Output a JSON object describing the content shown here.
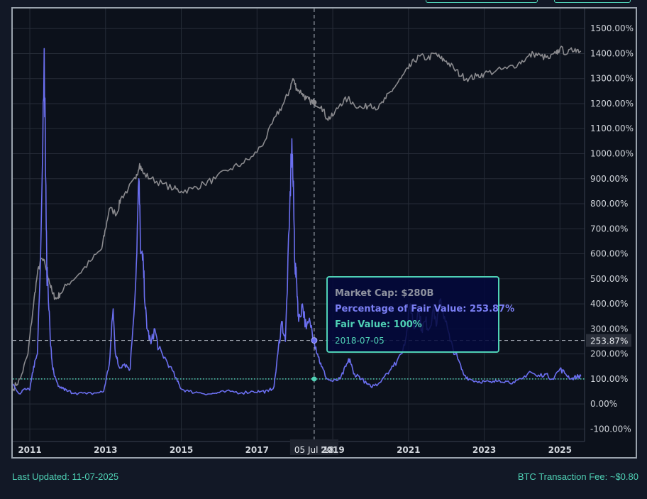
{
  "header": {
    "buttons": [
      {
        "label": ""
      },
      {
        "label": ""
      }
    ]
  },
  "footer": {
    "last_updated": "Last Updated: 11-07-2025",
    "fee": "BTC Transaction Fee: ~$0.80"
  },
  "tooltip": {
    "market_cap": "Market Cap: $280B",
    "percentage": "Percentage of Fair Value: 253.87%",
    "fair_value": "Fair Value: 100%",
    "date": "2018-07-05"
  },
  "crosshair": {
    "x_label": "05 Jul '18",
    "y_label": "253.87%",
    "x": 2018.51,
    "y": 253.87
  },
  "colors": {
    "background": "#0c111b",
    "page": "#121826",
    "grid": "#262c38",
    "percentage_line": "#6b6ff0",
    "market_cap_line": "#8a8a8e",
    "fair_value_line": "#4fd1b5",
    "axis_text": "#d0d4da",
    "frame": "#9aa3ad"
  },
  "chart_data": {
    "type": "line",
    "x_axis": {
      "min": 2010.55,
      "max": 2025.65,
      "ticks": [
        2011,
        2013,
        2015,
        2017,
        2019,
        2021,
        2023,
        2025
      ],
      "tick_labels": [
        "2011",
        "2013",
        "2015",
        "2017",
        "2019",
        "2021",
        "2023",
        "2025"
      ]
    },
    "y_axis": {
      "min": -150,
      "max": 1580,
      "position": "right",
      "ticks": [
        -100,
        0,
        100,
        200,
        300,
        400,
        500,
        600,
        700,
        800,
        900,
        1000,
        1100,
        1200,
        1300,
        1400,
        1500
      ],
      "tick_labels": [
        "-100.00%",
        "0.00%",
        "100.00%",
        "200.00%",
        "300.00%",
        "400.00%",
        "500.00%",
        "600.00%",
        "700.00%",
        "800.00%",
        "900.00%",
        "1000.00%",
        "1100.00%",
        "1200.00%",
        "1300.00%",
        "1400.00%",
        "1500.00%"
      ]
    },
    "grid": true,
    "fair_value": 100,
    "series": [
      {
        "key": "percentage_of_fair_value",
        "x": [
          2010.55,
          2010.75,
          2010.85,
          2011.0,
          2011.1,
          2011.2,
          2011.3,
          2011.38,
          2011.42,
          2011.45,
          2011.48,
          2011.55,
          2011.6,
          2011.65,
          2011.75,
          2011.9,
          2012.0,
          2012.2,
          2012.5,
          2012.8,
          2012.95,
          2013.1,
          2013.2,
          2013.25,
          2013.3,
          2013.35,
          2013.5,
          2013.65,
          2013.8,
          2013.88,
          2013.93,
          2014.0,
          2014.05,
          2014.1,
          2014.2,
          2014.3,
          2014.4,
          2014.5,
          2014.7,
          2014.9,
          2015.0,
          2015.2,
          2015.5,
          2015.8,
          2016.0,
          2016.3,
          2016.6,
          2016.9,
          2017.1,
          2017.3,
          2017.45,
          2017.55,
          2017.65,
          2017.75,
          2017.85,
          2017.92,
          2017.97,
          2018.0,
          2018.05,
          2018.1,
          2018.2,
          2018.3,
          2018.4,
          2018.51,
          2018.6,
          2018.7,
          2018.85,
          2019.0,
          2019.2,
          2019.35,
          2019.45,
          2019.55,
          2019.7,
          2019.9,
          2020.0,
          2020.2,
          2020.4,
          2020.6,
          2020.8,
          2020.95,
          2021.05,
          2021.15,
          2021.25,
          2021.35,
          2021.45,
          2021.55,
          2021.65,
          2021.75,
          2021.85,
          2021.95,
          2022.1,
          2022.3,
          2022.45,
          2022.6,
          2022.8,
          2023.0,
          2023.2,
          2023.4,
          2023.6,
          2023.8,
          2024.0,
          2024.2,
          2024.4,
          2024.6,
          2024.8,
          2025.0,
          2025.15,
          2025.3,
          2025.45,
          2025.55
        ],
        "y": [
          80,
          40,
          60,
          55,
          150,
          200,
          700,
          1420,
          900,
          520,
          480,
          230,
          150,
          110,
          70,
          60,
          50,
          45,
          40,
          45,
          50,
          160,
          380,
          220,
          180,
          150,
          160,
          140,
          500,
          900,
          600,
          550,
          380,
          300,
          240,
          300,
          220,
          200,
          150,
          90,
          60,
          50,
          45,
          40,
          45,
          50,
          45,
          50,
          50,
          50,
          70,
          200,
          330,
          250,
          700,
          1060,
          780,
          560,
          480,
          330,
          400,
          300,
          330,
          254,
          200,
          150,
          100,
          90,
          100,
          150,
          180,
          120,
          110,
          80,
          70,
          80,
          120,
          150,
          200,
          280,
          400,
          300,
          380,
          300,
          330,
          300,
          380,
          320,
          420,
          350,
          250,
          180,
          120,
          100,
          90,
          90,
          85,
          95,
          90,
          85,
          100,
          130,
          110,
          120,
          100,
          140,
          120,
          100,
          110,
          110
        ]
      },
      {
        "key": "market_cap",
        "x": [
          2010.55,
          2010.75,
          2010.95,
          2011.1,
          2011.2,
          2011.3,
          2011.4,
          2011.5,
          2011.6,
          2011.7,
          2011.8,
          2012.0,
          2012.3,
          2012.6,
          2012.9,
          2013.0,
          2013.1,
          2013.3,
          2013.4,
          2013.6,
          2013.8,
          2013.9,
          2014.0,
          2014.2,
          2014.5,
          2014.8,
          2015.0,
          2015.3,
          2015.6,
          2015.9,
          2016.3,
          2016.6,
          2016.9,
          2017.2,
          2017.5,
          2017.7,
          2017.85,
          2017.95,
          2018.05,
          2018.2,
          2018.3,
          2018.4,
          2018.51,
          2018.7,
          2018.85,
          2019.0,
          2019.2,
          2019.4,
          2019.55,
          2019.8,
          2020.0,
          2020.2,
          2020.4,
          2020.6,
          2020.8,
          2021.0,
          2021.15,
          2021.3,
          2021.5,
          2021.7,
          2021.85,
          2022.0,
          2022.2,
          2022.4,
          2022.6,
          2022.8,
          2023.0,
          2023.3,
          2023.6,
          2023.9,
          2024.1,
          2024.3,
          2024.5,
          2024.7,
          2024.9,
          2025.0,
          2025.2,
          2025.4,
          2025.55
        ],
        "y": [
          60,
          100,
          200,
          400,
          520,
          580,
          560,
          500,
          440,
          420,
          440,
          480,
          520,
          570,
          620,
          700,
          780,
          760,
          820,
          860,
          900,
          960,
          920,
          900,
          880,
          860,
          850,
          860,
          880,
          900,
          940,
          960,
          990,
          1050,
          1150,
          1200,
          1250,
          1300,
          1260,
          1240,
          1220,
          1210,
          1205,
          1190,
          1140,
          1150,
          1200,
          1220,
          1200,
          1180,
          1200,
          1180,
          1220,
          1260,
          1300,
          1340,
          1370,
          1390,
          1380,
          1400,
          1380,
          1370,
          1340,
          1310,
          1300,
          1310,
          1320,
          1330,
          1340,
          1360,
          1380,
          1400,
          1390,
          1380,
          1400,
          1420,
          1400,
          1420,
          1410
        ]
      }
    ]
  }
}
